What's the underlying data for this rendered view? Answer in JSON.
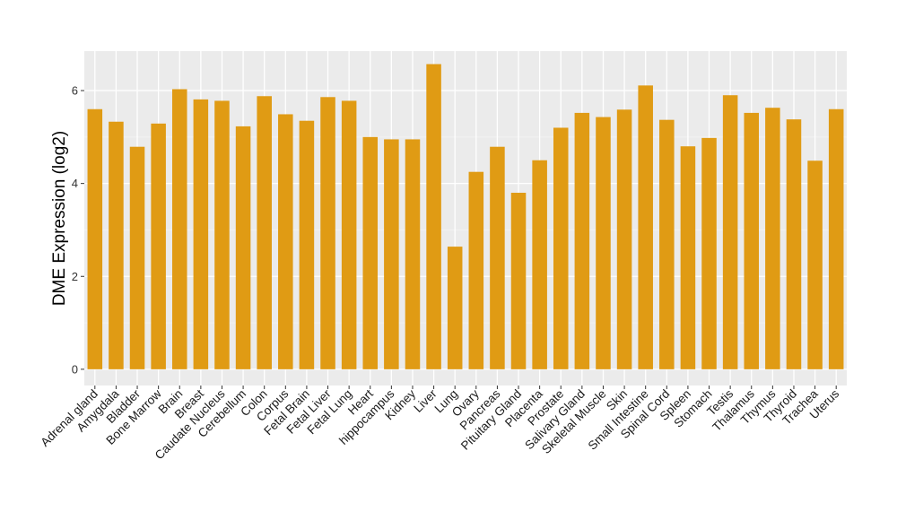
{
  "chart_data": {
    "type": "bar",
    "title": "",
    "xlabel": "",
    "ylabel": "DME Expression (log2)",
    "ylim": [
      -0.35,
      6.85
    ],
    "yticks": [
      0,
      2,
      4,
      6
    ],
    "grid": true,
    "background": "#ebebeb",
    "bar_color": "#e09b14",
    "categories": [
      "Adrenal gland",
      "Amygdala",
      "Bladder",
      "Bone Marrow",
      "Brain",
      "Breast",
      "Caudate Nucleus",
      "Cerebellum",
      "Colon",
      "Corpus",
      "Fetal Brain",
      "Fetal Liver",
      "Fetal Lung",
      "Heart",
      "hippocampus",
      "Kidney",
      "Liver",
      "Lung",
      "Ovary",
      "Pancreas",
      "Pituitary Gland",
      "Placenta",
      "Prostate",
      "Salivary Gland",
      "Skeletal Muscle",
      "Skin",
      "Small Intestine",
      "Spinal Cord",
      "Spleen",
      "Stomach",
      "Testis",
      "Thalamus",
      "Thymus",
      "Thyroid",
      "Trachea",
      "Uterus"
    ],
    "values": [
      5.6,
      5.33,
      4.79,
      5.29,
      6.03,
      5.81,
      5.78,
      5.23,
      5.88,
      5.49,
      5.35,
      5.86,
      5.78,
      5.0,
      4.95,
      4.95,
      6.57,
      2.64,
      4.25,
      4.79,
      3.8,
      4.5,
      5.2,
      5.52,
      5.43,
      5.59,
      6.11,
      5.37,
      4.8,
      4.98,
      5.9,
      5.52,
      5.63,
      5.38,
      4.49,
      5.6
    ]
  }
}
